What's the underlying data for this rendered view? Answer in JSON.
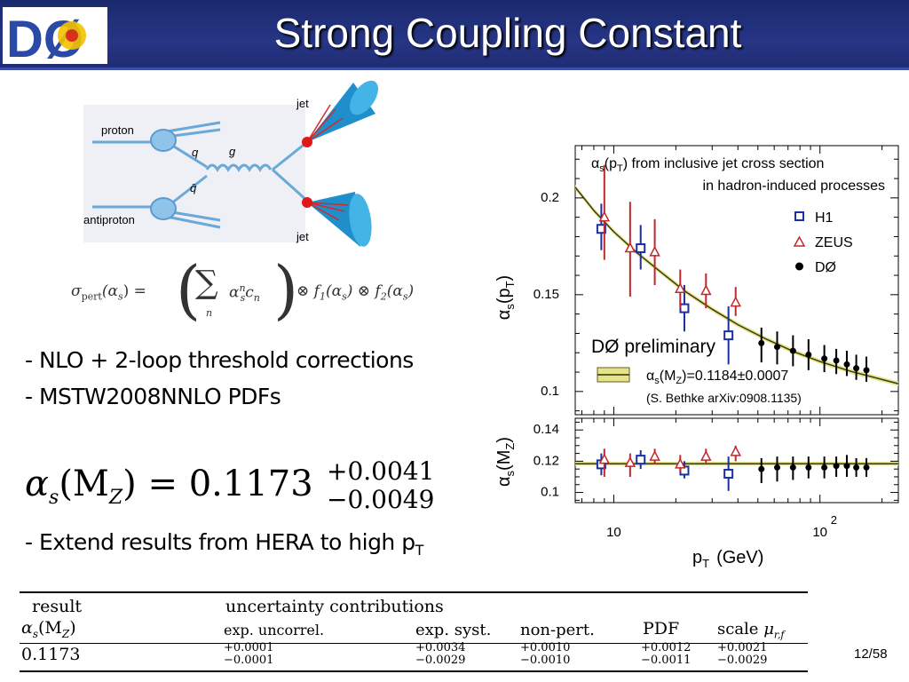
{
  "header": {
    "title": "Strong Coupling Constant",
    "logo_text": "DØ"
  },
  "diagram": {
    "proton": "proton",
    "antiproton": "antiproton",
    "q": "q",
    "qbar": "q̄",
    "g": "g",
    "jet_top": "jet",
    "jet_bottom": "jet"
  },
  "formula_sigma": {
    "lhs": "σ",
    "lhs_sub": "pert",
    "lhs_arg": "(α",
    "lhs_arg_sub": "s",
    "eq_part": ") = ",
    "sum_body": "α",
    "sum_body_sup": "n",
    "sum_body_sub": "s",
    "c": "c",
    "c_sub": "n",
    "sum_index": "n",
    "f1": "⊗ f",
    "f1_sub": "1",
    "f1_arg": "(α",
    "f1_arg_sub": "s",
    "f2": ") ⊗ f",
    "f2_sub": "2",
    "f2_arg": "(α",
    "f2_arg_sub": "s",
    "close": ")"
  },
  "bullets": [
    "- NLO + 2-loop threshold corrections",
    "- MSTW2008NNLO PDFs"
  ],
  "bullet3": {
    "text": "- Extend results from HERA to high p",
    "sub": "T"
  },
  "result_formula": {
    "alpha": "α",
    "alpha_sub": "s",
    "arg": "(M",
    "arg_sub": "Z",
    "eq": ") = 0.1173",
    "plus": "+0.0041",
    "minus": "−0.0049"
  },
  "chart_data": {
    "type": "scatter",
    "title": "",
    "xlabel": "p",
    "xlabel_sub": "T",
    "xlabel_unit": "(GeV)",
    "x_scale": "log",
    "xlim": [
      6.5,
      240
    ],
    "x_ticks": [
      {
        "value": 10,
        "label": "10",
        "sup": ""
      },
      {
        "value": 100,
        "label": "10",
        "sup": "2"
      }
    ],
    "panels": [
      {
        "ylabel": "α",
        "ylabel_sub": "s",
        "ylabel_arg": "(p",
        "ylabel_arg_sub": "T",
        "ylim": [
          0.088,
          0.227
        ],
        "y_ticks": [
          "0.2",
          "0.15",
          "0.1"
        ],
        "y_tick_values": [
          0.2,
          0.15,
          0.1
        ],
        "annotation": {
          "l1a": "α",
          "l1b": "s",
          "l1c": "(p",
          "l1d": "T",
          "l1e": ") from inclusive jet cross section",
          "l2": "in hadron-induced processes"
        },
        "preliminary": "DØ preliminary",
        "fit_label": {
          "a": "α",
          "b": "s",
          "c": "(M",
          "d": "Z",
          "e": ")=0.1184±0.0007"
        },
        "reference": "(S. Bethke arXiv:0908.1135)",
        "curve": [
          [
            6.5,
            0.2055
          ],
          [
            8,
            0.1935
          ],
          [
            10,
            0.1825
          ],
          [
            13,
            0.1715
          ],
          [
            17,
            0.1615
          ],
          [
            22,
            0.152
          ],
          [
            30,
            0.1425
          ],
          [
            40,
            0.1345
          ],
          [
            55,
            0.127
          ],
          [
            75,
            0.1205
          ],
          [
            100,
            0.1155
          ],
          [
            140,
            0.1105
          ],
          [
            240,
            0.104
          ]
        ],
        "band_halfwidth": 0.0012
      },
      {
        "ylabel": "α",
        "ylabel_sub": "s",
        "ylabel_arg": "(M",
        "ylabel_arg_sub": "Z",
        "ylim": [
          0.0935,
          0.1475
        ],
        "y_ticks": [
          "0.14",
          "0.12",
          "0.1"
        ],
        "y_tick_values": [
          0.14,
          0.12,
          0.1
        ],
        "line": 0.1184,
        "band_halfwidth": 0.0007
      }
    ],
    "legend": {
      "position": "right",
      "items": [
        {
          "name": "H1",
          "marker": "square",
          "color": "#1b2fa0"
        },
        {
          "name": "ZEUS",
          "marker": "triangle",
          "color": "#c0282d"
        },
        {
          "name": "DØ",
          "marker": "circle",
          "color": "#000000"
        }
      ]
    },
    "series": [
      {
        "name": "H1",
        "marker": "square",
        "color": "#1b2fa0",
        "x": [
          8.7,
          13.5,
          22,
          36
        ],
        "y": [
          0.184,
          0.174,
          0.143,
          0.129
        ],
        "err": [
          [
            0.173,
            0.197
          ],
          [
            0.163,
            0.186
          ],
          [
            0.131,
            0.155
          ],
          [
            0.114,
            0.144
          ]
        ],
        "y2": [
          0.118,
          0.121,
          0.114,
          0.112
        ],
        "err2": [
          [
            0.111,
            0.125
          ],
          [
            0.115,
            0.127
          ],
          [
            0.109,
            0.12
          ],
          [
            0.101,
            0.123
          ]
        ]
      },
      {
        "name": "ZEUS",
        "marker": "triangle",
        "color": "#c0282d",
        "x": [
          9,
          12,
          15.8,
          21,
          28,
          39
        ],
        "y": [
          0.19,
          0.174,
          0.172,
          0.153,
          0.152,
          0.146
        ],
        "err": [
          [
            0.168,
            0.217
          ],
          [
            0.149,
            0.198
          ],
          [
            0.155,
            0.189
          ],
          [
            0.143,
            0.163
          ],
          [
            0.143,
            0.161
          ],
          [
            0.139,
            0.154
          ]
        ],
        "y2": [
          0.121,
          0.119,
          0.123,
          0.118,
          0.123,
          0.126
        ],
        "err2": [
          [
            0.11,
            0.128
          ],
          [
            0.11,
            0.125
          ],
          [
            0.118,
            0.128
          ],
          [
            0.113,
            0.124
          ],
          [
            0.119,
            0.128
          ],
          [
            0.12,
            0.13
          ]
        ]
      },
      {
        "name": "DØ",
        "marker": "circle",
        "color": "#000000",
        "x": [
          52,
          62,
          74,
          88,
          105,
          120,
          135,
          150,
          168
        ],
        "y": [
          0.125,
          0.123,
          0.121,
          0.119,
          0.117,
          0.116,
          0.114,
          0.112,
          0.111
        ],
        "err": [
          [
            0.115,
            0.133
          ],
          [
            0.114,
            0.131
          ],
          [
            0.113,
            0.129
          ],
          [
            0.111,
            0.127
          ],
          [
            0.11,
            0.124
          ],
          [
            0.109,
            0.122
          ],
          [
            0.108,
            0.121
          ],
          [
            0.106,
            0.119
          ],
          [
            0.105,
            0.118
          ]
        ],
        "y2": [
          0.115,
          0.116,
          0.116,
          0.116,
          0.116,
          0.117,
          0.117,
          0.116,
          0.116
        ],
        "err2": [
          [
            0.106,
            0.122
          ],
          [
            0.107,
            0.123
          ],
          [
            0.108,
            0.123
          ],
          [
            0.109,
            0.123
          ],
          [
            0.109,
            0.123
          ],
          [
            0.11,
            0.123
          ],
          [
            0.11,
            0.124
          ],
          [
            0.11,
            0.122
          ],
          [
            0.11,
            0.122
          ]
        ]
      }
    ]
  },
  "table": {
    "headers": {
      "result": "result",
      "uncert": "uncertainty contributions"
    },
    "sub": {
      "alpha": "α",
      "alpha_sub": "s",
      "alpha_arg": "(M",
      "alpha_arg_sub": "Z",
      "alpha_close": ")",
      "exp_uncorr": "exp. uncorrel.",
      "exp_syst": "exp. syst.",
      "nonpert": "non-pert.",
      "pdf": "PDF",
      "scale": "scale ",
      "mu": "μ",
      "mu_sub": "r,f"
    },
    "row": {
      "value": "0.1173",
      "c1p": "+0.0001",
      "c1m": "−0.0001",
      "c2p": "+0.0034",
      "c2m": "−0.0029",
      "c3p": "+0.0010",
      "c3m": "−0.0010",
      "c4p": "+0.0012",
      "c4m": "−0.0011",
      "c5p": "+0.0021",
      "c5m": "−0.0029"
    }
  },
  "footer": {
    "page": "12/58"
  }
}
